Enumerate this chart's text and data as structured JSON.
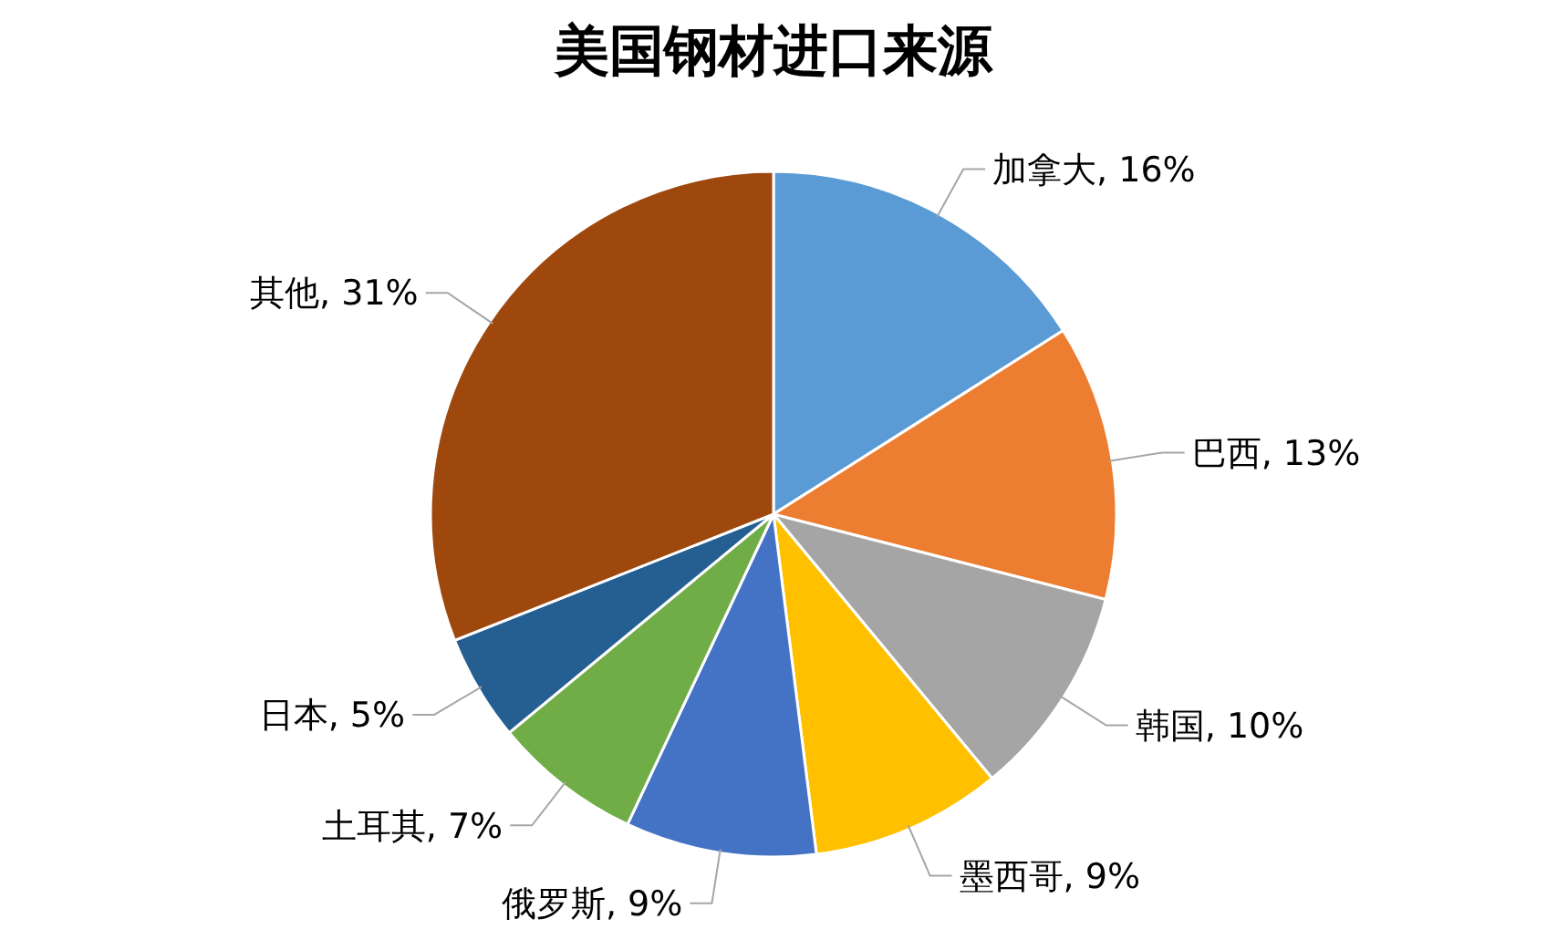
{
  "chart_data": {
    "type": "pie",
    "title": "美国钢材进口来源",
    "categories": [
      "加拿大",
      "巴西",
      "韩国",
      "墨西哥",
      "俄罗斯",
      "土耳其",
      "日本",
      "其他"
    ],
    "values": [
      16,
      13,
      10,
      9,
      9,
      7,
      5,
      31
    ],
    "value_labels": [
      "16%",
      "13%",
      "10%",
      "9%",
      "9%",
      "7%",
      "5%",
      "31%"
    ],
    "colors": [
      "#5b9bd5",
      "#ed7d31",
      "#a5a5a5",
      "#ffc000",
      "#4472c4",
      "#70ad47",
      "#255e91",
      "#9e480e"
    ],
    "legend": false
  }
}
